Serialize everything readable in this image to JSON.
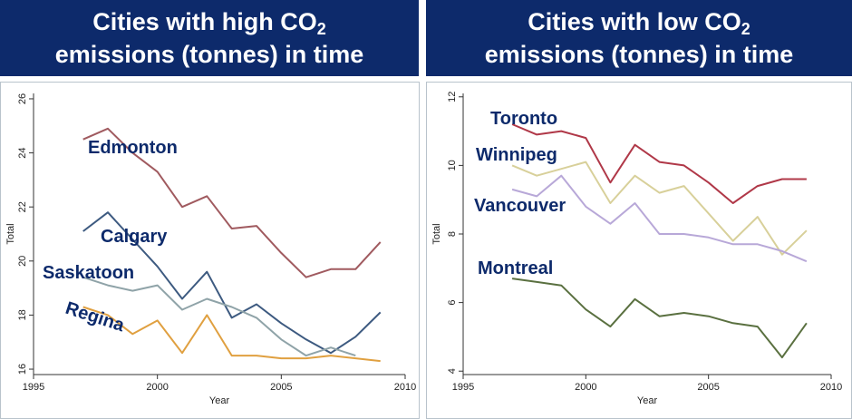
{
  "banners": {
    "left": {
      "line1_prefix": "Cities with high CO",
      "line1_sub": "2",
      "line2": "emissions (tonnes) in time"
    },
    "right": {
      "line1_prefix": "Cities with low CO",
      "line1_sub": "2",
      "line2": "emissions (tonnes) in time"
    }
  },
  "chart_data": [
    {
      "type": "line",
      "title": "Cities with high CO2 emissions (tonnes) in time",
      "xlabel": "Year",
      "ylabel": "Total",
      "xlim": [
        1995,
        2010
      ],
      "ylim": [
        15.8,
        26.2
      ],
      "xticks": [
        1995,
        2000,
        2005,
        2010
      ],
      "yticks": [
        16,
        18,
        20,
        22,
        24,
        26
      ],
      "grid": false,
      "series": [
        {
          "name": "Edmonton",
          "color": "#a05a5f",
          "x": [
            1997,
            1998,
            1999,
            2000,
            2001,
            2002,
            2003,
            2004,
            2005,
            2006,
            2007,
            2008,
            2009
          ],
          "y": [
            24.5,
            24.9,
            24.0,
            23.3,
            22.0,
            22.4,
            21.2,
            21.3,
            20.3,
            19.4,
            19.7,
            19.7,
            20.7
          ]
        },
        {
          "name": "Calgary",
          "color": "#3d5a80",
          "x": [
            1997,
            1998,
            1999,
            2000,
            2001,
            2002,
            2003,
            2004,
            2005,
            2006,
            2007,
            2008,
            2009
          ],
          "y": [
            21.1,
            21.8,
            20.8,
            19.8,
            18.6,
            19.6,
            17.9,
            18.4,
            17.7,
            17.1,
            16.6,
            17.2,
            18.1
          ]
        },
        {
          "name": "Saskatoon",
          "color": "#8fa3a8",
          "x": [
            1997,
            1998,
            1999,
            2000,
            2001,
            2002,
            2003,
            2004,
            2005,
            2006,
            2007,
            2008
          ],
          "y": [
            19.4,
            19.1,
            18.9,
            19.1,
            18.2,
            18.6,
            18.3,
            17.9,
            17.1,
            16.5,
            16.8,
            16.5
          ]
        },
        {
          "name": "Regina",
          "color": "#e0a040",
          "x": [
            1997,
            1998,
            1999,
            2000,
            2001,
            2002,
            2003,
            2004,
            2005,
            2006,
            2007,
            2008,
            2009
          ],
          "y": [
            18.3,
            18.0,
            17.3,
            17.8,
            16.6,
            18.0,
            16.5,
            16.5,
            16.4,
            16.4,
            16.5,
            16.4,
            16.3
          ]
        }
      ]
    },
    {
      "type": "line",
      "title": "Cities with low CO2 emissions (tonnes) in time",
      "xlabel": "Year",
      "ylabel": "Total",
      "xlim": [
        1995,
        2010
      ],
      "ylim": [
        3.9,
        12.1
      ],
      "xticks": [
        1995,
        2000,
        2005,
        2010
      ],
      "yticks": [
        4,
        6,
        8,
        10,
        12
      ],
      "grid": false,
      "series": [
        {
          "name": "Toronto",
          "color": "#b03848",
          "x": [
            1997,
            1998,
            1999,
            2000,
            2001,
            2002,
            2003,
            2004,
            2005,
            2006,
            2007,
            2008,
            2009
          ],
          "y": [
            11.2,
            10.9,
            11.0,
            10.8,
            9.5,
            10.6,
            10.1,
            10.0,
            9.5,
            8.9,
            9.4,
            9.6,
            9.6
          ]
        },
        {
          "name": "Winnipeg",
          "color": "#d8d09a",
          "x": [
            1997,
            1998,
            1999,
            2000,
            2001,
            2002,
            2003,
            2004,
            2005,
            2006,
            2007,
            2008,
            2009
          ],
          "y": [
            10.0,
            9.7,
            9.9,
            10.1,
            8.9,
            9.7,
            9.2,
            9.4,
            8.6,
            7.8,
            8.5,
            7.4,
            8.1
          ]
        },
        {
          "name": "Vancouver",
          "color": "#b8a8d8",
          "x": [
            1997,
            1998,
            1999,
            2000,
            2001,
            2002,
            2003,
            2004,
            2005,
            2006,
            2007,
            2008,
            2009
          ],
          "y": [
            9.3,
            9.1,
            9.7,
            8.8,
            8.3,
            8.9,
            8.0,
            8.0,
            7.9,
            7.7,
            7.7,
            7.5,
            7.2
          ]
        },
        {
          "name": "Montreal",
          "color": "#5a7040",
          "x": [
            1997,
            1998,
            1999,
            2000,
            2001,
            2002,
            2003,
            2004,
            2005,
            2006,
            2007,
            2008,
            2009
          ],
          "y": [
            6.7,
            6.6,
            6.5,
            5.8,
            5.3,
            6.1,
            5.6,
            5.7,
            5.6,
            5.4,
            5.3,
            4.4,
            5.4
          ]
        }
      ]
    }
  ]
}
